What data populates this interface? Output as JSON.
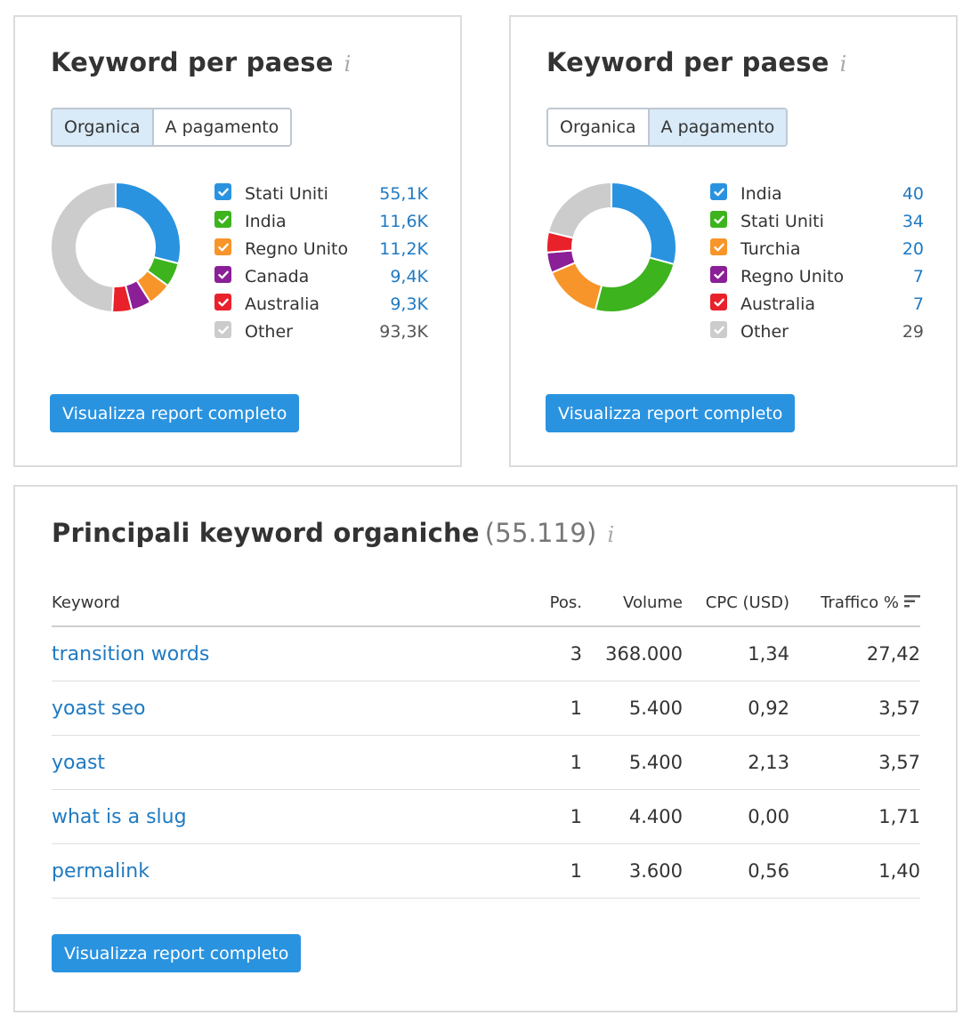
{
  "colors": {
    "blue": "#2a93e0",
    "green": "#3db31e",
    "orange": "#f7952a",
    "purple": "#8a1f97",
    "red": "#e8212b",
    "gray": "#cccccc",
    "link": "#1f7ac2"
  },
  "left_panel": {
    "title": "Keyword per paese",
    "info_icon": "info-icon",
    "tabs": [
      {
        "label": "Organica",
        "active": true
      },
      {
        "label": "A pagamento",
        "active": false
      }
    ],
    "button_label": "Visualizza report completo"
  },
  "right_panel": {
    "title": "Keyword per paese",
    "info_icon": "info-icon",
    "tabs": [
      {
        "label": "Organica",
        "active": false
      },
      {
        "label": "A pagamento",
        "active": true
      }
    ],
    "button_label": "Visualizza report completo"
  },
  "chart_data": [
    {
      "type": "pie",
      "donut": true,
      "categories": [
        "Stati Uniti",
        "India",
        "Regno Unito",
        "Canada",
        "Australia",
        "Other"
      ],
      "values": [
        55100,
        11600,
        11200,
        9400,
        9300,
        93300
      ],
      "value_labels": [
        "55,1K",
        "11,6K",
        "11,2K",
        "9,4K",
        "9,3K",
        "93,3K"
      ],
      "colors": [
        "#2a93e0",
        "#3db31e",
        "#f7952a",
        "#8a1f97",
        "#e8212b",
        "#cccccc"
      ],
      "legend": "right"
    },
    {
      "type": "pie",
      "donut": true,
      "categories": [
        "India",
        "Stati Uniti",
        "Turchia",
        "Regno Unito",
        "Australia",
        "Other"
      ],
      "values": [
        40,
        34,
        20,
        7,
        7,
        29
      ],
      "value_labels": [
        "40",
        "34",
        "20",
        "7",
        "7",
        "29"
      ],
      "colors": [
        "#2a93e0",
        "#3db31e",
        "#f7952a",
        "#8a1f97",
        "#e8212b",
        "#cccccc"
      ],
      "legend": "right"
    }
  ],
  "bottom_panel": {
    "title": "Principali keyword organiche",
    "count": "(55.119)",
    "info_icon": "info-icon",
    "columns": {
      "keyword": "Keyword",
      "pos": "Pos.",
      "volume": "Volume",
      "cpc": "CPC (USD)",
      "traffic": "Traffico %"
    },
    "sort_icon": "sort-desc-icon",
    "rows": [
      {
        "keyword": "transition words",
        "pos": "3",
        "volume": "368.000",
        "cpc": "1,34",
        "traffic": "27,42"
      },
      {
        "keyword": "yoast seo",
        "pos": "1",
        "volume": "5.400",
        "cpc": "0,92",
        "traffic": "3,57"
      },
      {
        "keyword": "yoast",
        "pos": "1",
        "volume": "5.400",
        "cpc": "2,13",
        "traffic": "3,57"
      },
      {
        "keyword": "what is a slug",
        "pos": "1",
        "volume": "4.400",
        "cpc": "0,00",
        "traffic": "1,71"
      },
      {
        "keyword": "permalink",
        "pos": "1",
        "volume": "3.600",
        "cpc": "0,56",
        "traffic": "1,40"
      }
    ],
    "button_label": "Visualizza report completo"
  }
}
